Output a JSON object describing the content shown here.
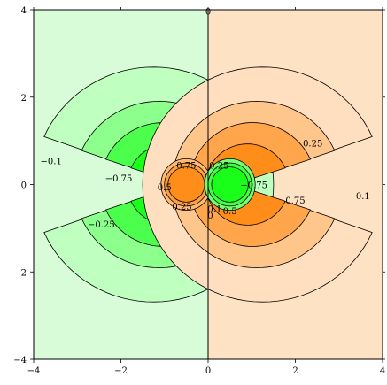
{
  "chart_data": {
    "type": "contour",
    "title": "",
    "xlabel": "",
    "ylabel": "",
    "xlim": [
      -4,
      4
    ],
    "ylim": [
      -4,
      4
    ],
    "x_ticks": [
      "−4",
      "−2",
      "0",
      "2",
      "4"
    ],
    "y_ticks": [
      "−4",
      "−2",
      "0",
      "2",
      "4"
    ],
    "grid": false,
    "colors": {
      "negative_fill": "#00ff00",
      "positive_fill": "#ff8000",
      "background_negative": "#d8fcd8",
      "background_positive": "#fde2c4",
      "contour_stroke": "#000000"
    },
    "contour_levels": [
      -1,
      -0.75,
      -0.5,
      -0.25,
      -0.1,
      0,
      0.1,
      0.25,
      0.5,
      0.75,
      1
    ],
    "contour_labels": [
      {
        "text": "0",
        "x": 0.0,
        "y": 3.97
      },
      {
        "text": "−0.1",
        "x": -3.6,
        "y": 0.55
      },
      {
        "text": "−0.75",
        "x": -2.05,
        "y": 0.15
      },
      {
        "text": "−0.25",
        "x": -2.45,
        "y": -0.9
      },
      {
        "text": "0.75",
        "x": -0.5,
        "y": 0.45
      },
      {
        "text": "0.5",
        "x": -1.0,
        "y": -0.05
      },
      {
        "text": "0.25",
        "x": -0.6,
        "y": -0.5
      },
      {
        "text": "0.25",
        "x": 0.25,
        "y": 0.45
      },
      {
        "text": "0.1",
        "x": 0.15,
        "y": -0.55
      },
      {
        "text": "0.5",
        "x": 0.5,
        "y": -0.6
      },
      {
        "text": "0",
        "x": 0.05,
        "y": -0.7
      },
      {
        "text": "−0.75",
        "x": 1.05,
        "y": 0.0
      },
      {
        "text": "0.75",
        "x": 2.0,
        "y": -0.35
      },
      {
        "text": "0.25",
        "x": 2.4,
        "y": 0.95
      },
      {
        "text": "0.1",
        "x": 3.55,
        "y": -0.25
      }
    ]
  }
}
